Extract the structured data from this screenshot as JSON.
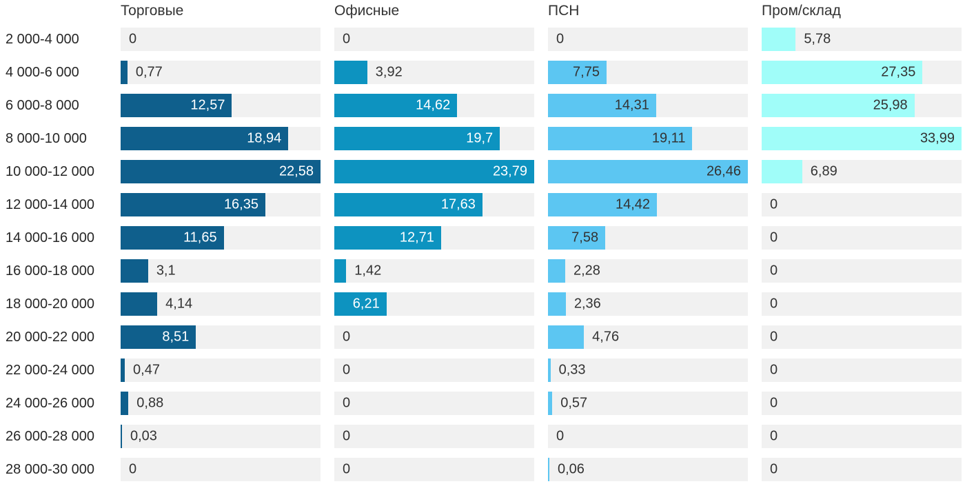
{
  "chart_data": {
    "type": "bar",
    "orientation": "horizontal",
    "layout": "small-multiples-4-columns",
    "grid": false,
    "legend_position": "column-headers-top",
    "categories": [
      "2 000-4 000",
      "4 000-6 000",
      "6 000-8 000",
      "8 000-10 000",
      "10 000-12 000",
      "12 000-14 000",
      "14 000-16 000",
      "16 000-18 000",
      "18 000-20 000",
      "20 000-22 000",
      "22 000-24 000",
      "24 000-26 000",
      "26 000-28 000",
      "28 000-30 000"
    ],
    "series": [
      {
        "name": "Торговые",
        "color": "#0f5f8c",
        "inside_label_color": "#ffffff",
        "values": [
          0,
          0.77,
          12.57,
          18.94,
          22.58,
          16.35,
          11.65,
          3.1,
          4.14,
          8.51,
          0.47,
          0.88,
          0.03,
          0
        ],
        "labels": [
          "0",
          "0,77",
          "12,57",
          "18,94",
          "22,58",
          "16,35",
          "11,65",
          "3,1",
          "4,14",
          "8,51",
          "0,47",
          "0,88",
          "0,03",
          "0"
        ]
      },
      {
        "name": "Офисные",
        "color": "#0d93c0",
        "inside_label_color": "#ffffff",
        "values": [
          0,
          3.92,
          14.62,
          19.7,
          23.79,
          17.63,
          12.71,
          1.42,
          6.21,
          0,
          0,
          0,
          0,
          0
        ],
        "labels": [
          "0",
          "3,92",
          "14,62",
          "19,7",
          "23,79",
          "17,63",
          "12,71",
          "1,42",
          "6,21",
          "0",
          "0",
          "0",
          "0",
          "0"
        ]
      },
      {
        "name": "ПСН",
        "color": "#5cc6f2",
        "inside_label_color": "#333333",
        "values": [
          0,
          7.75,
          14.31,
          19.11,
          26.46,
          14.42,
          7.58,
          2.28,
          2.36,
          4.76,
          0.33,
          0.57,
          0,
          0.06
        ],
        "labels": [
          "0",
          "7,75",
          "14,31",
          "19,11",
          "26,46",
          "14,42",
          "7,58",
          "2,28",
          "2,36",
          "4,76",
          "0,33",
          "0,57",
          "0",
          "0,06"
        ]
      },
      {
        "name": "Пром/склад",
        "color": "#a0fdf9",
        "inside_label_color": "#333333",
        "values": [
          5.78,
          27.35,
          25.98,
          33.99,
          6.89,
          0,
          0,
          0,
          0,
          0,
          0,
          0,
          0,
          0
        ],
        "labels": [
          "5,78",
          "27,35",
          "25,98",
          "33,99",
          "6,89",
          "0",
          "0",
          "0",
          "0",
          "0",
          "0",
          "0",
          "0",
          "0"
        ]
      }
    ],
    "scaling": "per-column-max",
    "track_color": "#f1f1f1",
    "value_label_color_outside": "#333333",
    "category_label_color": "#262626",
    "header_color": "#333333",
    "background_color": "#ffffff"
  }
}
